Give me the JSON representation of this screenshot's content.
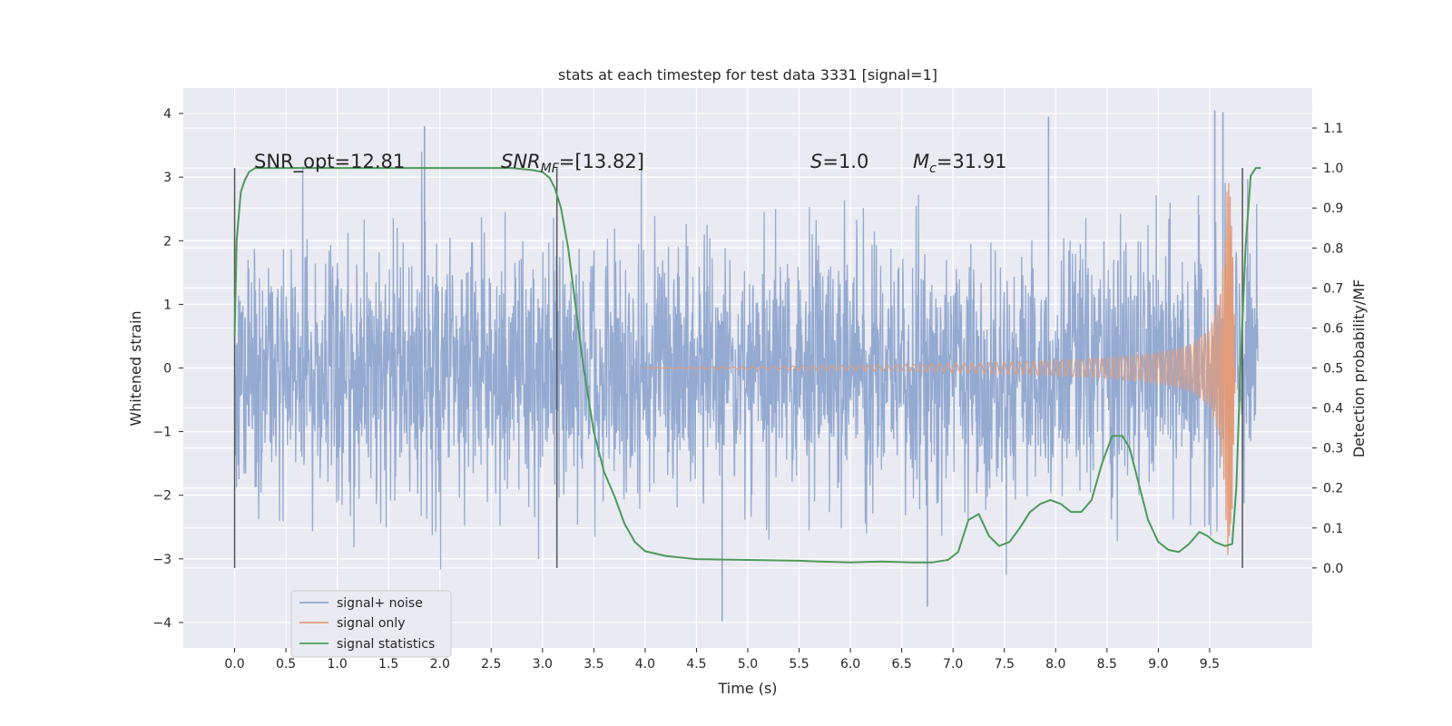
{
  "chart_data": {
    "type": "line",
    "title": "stats at each timestep for test data 3331 [signal=1]",
    "xlabel": "Time (s)",
    "ylabel": "Whitened strain",
    "y2label": "Detection probability/MF",
    "xlim": [
      -0.5,
      10.5
    ],
    "ylim": [
      -4.4,
      4.4
    ],
    "y2lim": [
      -0.2,
      1.2
    ],
    "xticks": [
      "0.0",
      "0.5",
      "1.0",
      "1.5",
      "2.0",
      "2.5",
      "3.0",
      "3.5",
      "4.0",
      "4.5",
      "5.0",
      "5.5",
      "6.0",
      "6.5",
      "7.0",
      "7.5",
      "8.0",
      "8.5",
      "9.0",
      "9.5"
    ],
    "yticks": [
      "4",
      "3",
      "2",
      "1",
      "0",
      "−1",
      "−2",
      "−3",
      "−4"
    ],
    "y2ticks": [
      "1.1",
      "1.0",
      "0.9",
      "0.8",
      "0.7",
      "0.6",
      "0.5",
      "0.4",
      "0.3",
      "0.2",
      "0.1",
      "0.0"
    ],
    "grid": true,
    "legend_position": "lower-left",
    "annotations": {
      "snr_opt": "SNR_opt=12.81",
      "snr_mf_main": "SNR",
      "snr_mf_sub": "MF",
      "snr_mf_value": "=[13.82]",
      "s_main": "S",
      "s_value": "=1.0",
      "mc_main": "M",
      "mc_sub": "c",
      "mc_value": "=31.91"
    },
    "vertical_lines_x": [
      0.0,
      3.14,
      9.82
    ],
    "series": [
      {
        "name": "signal+ noise",
        "color": "#8fa6cf",
        "axis": "left",
        "description_values": {
          "extreme_points": [
            [
              1.85,
              3.8
            ],
            [
              4.75,
              -3.98
            ],
            [
              6.75,
              -3.75
            ],
            [
              7.93,
              3.95
            ],
            [
              9.55,
              4.05
            ],
            [
              9.63,
              4.02
            ]
          ]
        }
      },
      {
        "name": "signal only",
        "color": "#e29c7a",
        "axis": "left",
        "envelope": [
          [
            5.0,
            0.02
          ],
          [
            6.0,
            0.04
          ],
          [
            7.0,
            0.07
          ],
          [
            8.0,
            0.12
          ],
          [
            8.5,
            0.16
          ],
          [
            9.0,
            0.24
          ],
          [
            9.3,
            0.35
          ],
          [
            9.5,
            0.6
          ],
          [
            9.6,
            1.1
          ],
          [
            9.65,
            2.0
          ],
          [
            9.68,
            3.2
          ],
          [
            9.72,
            2.2
          ],
          [
            9.75,
            0.0
          ]
        ]
      },
      {
        "name": "signal statistics",
        "color": "#4c9a5a",
        "axis": "right",
        "x": [
          0.0,
          0.02,
          0.06,
          0.1,
          0.14,
          0.2,
          0.3,
          0.5,
          1.0,
          2.0,
          2.7,
          2.9,
          3.0,
          3.07,
          3.12,
          3.18,
          3.25,
          3.3,
          3.35,
          3.4,
          3.45,
          3.5,
          3.6,
          3.7,
          3.8,
          3.9,
          4.0,
          4.2,
          4.5,
          5.0,
          5.5,
          5.7,
          6.0,
          6.3,
          6.6,
          6.8,
          6.95,
          7.05,
          7.15,
          7.25,
          7.35,
          7.45,
          7.55,
          7.65,
          7.75,
          7.85,
          7.95,
          8.05,
          8.15,
          8.25,
          8.35,
          8.45,
          8.55,
          8.65,
          8.72,
          8.8,
          8.9,
          9.0,
          9.1,
          9.2,
          9.3,
          9.4,
          9.48,
          9.55,
          9.65,
          9.72,
          9.76,
          9.8,
          9.85,
          9.9,
          9.95,
          10.0
        ],
        "y": [
          0.58,
          0.82,
          0.94,
          0.97,
          0.99,
          1.0,
          1.0,
          1.0,
          1.0,
          1.0,
          1.0,
          0.995,
          0.99,
          0.975,
          0.95,
          0.9,
          0.8,
          0.7,
          0.6,
          0.5,
          0.42,
          0.34,
          0.24,
          0.18,
          0.11,
          0.065,
          0.042,
          0.03,
          0.022,
          0.02,
          0.018,
          0.016,
          0.014,
          0.016,
          0.014,
          0.014,
          0.02,
          0.04,
          0.12,
          0.135,
          0.08,
          0.055,
          0.065,
          0.1,
          0.14,
          0.16,
          0.17,
          0.16,
          0.14,
          0.14,
          0.17,
          0.26,
          0.33,
          0.33,
          0.3,
          0.22,
          0.12,
          0.065,
          0.045,
          0.04,
          0.06,
          0.09,
          0.08,
          0.065,
          0.055,
          0.06,
          0.2,
          0.5,
          0.8,
          0.98,
          1.0,
          1.0
        ]
      }
    ]
  }
}
